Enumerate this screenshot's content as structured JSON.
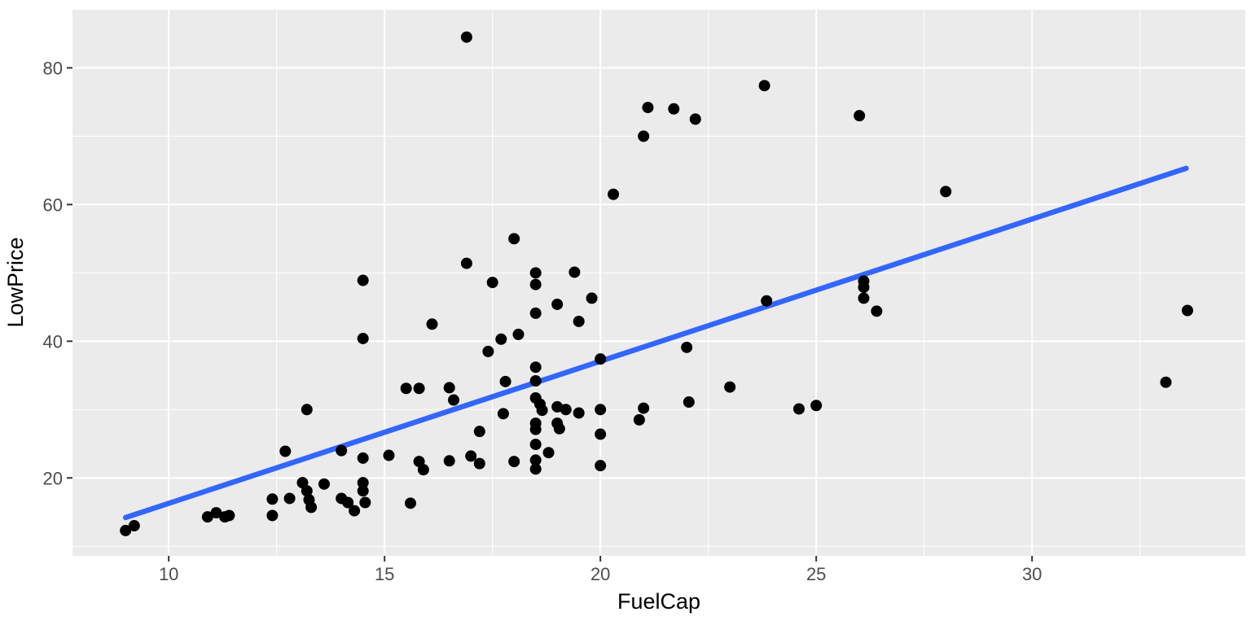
{
  "figure": {
    "kind": "ggplot-scatterplot-with-regression-line"
  },
  "chart_data": {
    "type": "scatter",
    "title": "",
    "xlabel": "FuelCap",
    "ylabel": "LowPrice",
    "xlim": [
      7.77,
      34.94
    ],
    "ylim": [
      8.6,
      88.5
    ],
    "x_major_ticks": [
      10,
      15,
      20,
      25,
      30
    ],
    "y_major_ticks": [
      20,
      40,
      60,
      80
    ],
    "x_minor_ticks": [
      12.5,
      17.5,
      22.5,
      27.5,
      32.5
    ],
    "y_minor_ticks": [
      10,
      30,
      50,
      70
    ],
    "x_tick_labels": [
      "10",
      "15",
      "20",
      "25",
      "30"
    ],
    "y_tick_labels": [
      "20",
      "40",
      "60",
      "80"
    ],
    "grid": true,
    "legend": false,
    "panel_bg": "#EBEBEB",
    "grid_color": "#FFFFFF",
    "tick_color": "#333333",
    "axis_text_color": "#4D4D4D",
    "point_color": "#000000",
    "point_radius": 7,
    "smooth_line": {
      "color": "#3366FF",
      "width": 6.5,
      "x1": 9.0,
      "y1": 14.2,
      "x2": 33.57,
      "y2": 65.3
    },
    "points": [
      [
        9.0,
        12.3
      ],
      [
        9.2,
        13.0
      ],
      [
        10.9,
        14.3
      ],
      [
        11.1,
        14.9
      ],
      [
        11.3,
        14.3
      ],
      [
        11.4,
        14.5
      ],
      [
        12.4,
        16.9
      ],
      [
        12.4,
        14.5
      ],
      [
        12.7,
        23.9
      ],
      [
        12.8,
        17.0
      ],
      [
        13.1,
        19.3
      ],
      [
        13.2,
        18.1
      ],
      [
        13.25,
        16.8
      ],
      [
        13.3,
        15.7
      ],
      [
        13.2,
        30.0
      ],
      [
        13.6,
        19.1
      ],
      [
        14.0,
        24.0
      ],
      [
        14.0,
        17.0
      ],
      [
        14.15,
        16.4
      ],
      [
        14.3,
        15.2
      ],
      [
        14.5,
        48.9
      ],
      [
        14.5,
        40.4
      ],
      [
        14.5,
        22.9
      ],
      [
        14.5,
        19.3
      ],
      [
        14.5,
        18.1
      ],
      [
        14.55,
        16.4
      ],
      [
        15.1,
        23.3
      ],
      [
        15.5,
        33.1
      ],
      [
        15.8,
        33.1
      ],
      [
        15.6,
        16.3
      ],
      [
        15.8,
        22.4
      ],
      [
        15.9,
        21.2
      ],
      [
        16.1,
        42.5
      ],
      [
        16.5,
        33.2
      ],
      [
        16.5,
        22.5
      ],
      [
        16.6,
        31.4
      ],
      [
        16.9,
        84.5
      ],
      [
        16.9,
        51.4
      ],
      [
        17.0,
        23.2
      ],
      [
        17.2,
        26.8
      ],
      [
        17.2,
        22.1
      ],
      [
        17.4,
        38.5
      ],
      [
        17.5,
        48.6
      ],
      [
        17.7,
        40.3
      ],
      [
        17.75,
        29.4
      ],
      [
        17.8,
        34.1
      ],
      [
        18.0,
        55.0
      ],
      [
        18.0,
        22.4
      ],
      [
        18.1,
        41.0
      ],
      [
        18.5,
        50.0
      ],
      [
        18.5,
        48.3
      ],
      [
        18.5,
        44.1
      ],
      [
        18.5,
        36.2
      ],
      [
        18.5,
        34.2
      ],
      [
        18.5,
        31.7
      ],
      [
        18.6,
        30.8
      ],
      [
        18.65,
        29.9
      ],
      [
        18.5,
        28.0
      ],
      [
        18.5,
        27.1
      ],
      [
        18.5,
        24.9
      ],
      [
        18.5,
        22.6
      ],
      [
        18.5,
        21.3
      ],
      [
        18.8,
        23.7
      ],
      [
        19.0,
        45.4
      ],
      [
        19.0,
        30.4
      ],
      [
        19.2,
        30.0
      ],
      [
        19.0,
        28.0
      ],
      [
        19.05,
        27.2
      ],
      [
        19.4,
        50.1
      ],
      [
        19.5,
        42.9
      ],
      [
        19.5,
        29.5
      ],
      [
        19.8,
        46.3
      ],
      [
        20.0,
        37.4
      ],
      [
        20.0,
        30.0
      ],
      [
        20.0,
        26.4
      ],
      [
        20.0,
        21.8
      ],
      [
        20.3,
        61.5
      ],
      [
        20.9,
        28.5
      ],
      [
        21.0,
        30.2
      ],
      [
        21.0,
        70.0
      ],
      [
        21.1,
        74.2
      ],
      [
        21.7,
        74.0
      ],
      [
        22.0,
        39.1
      ],
      [
        22.05,
        31.1
      ],
      [
        22.2,
        72.5
      ],
      [
        23.0,
        33.3
      ],
      [
        23.8,
        77.4
      ],
      [
        23.85,
        45.9
      ],
      [
        24.6,
        30.1
      ],
      [
        25.0,
        30.6
      ],
      [
        26.1,
        48.8
      ],
      [
        26.1,
        47.9
      ],
      [
        26.1,
        46.3
      ],
      [
        26.4,
        44.4
      ],
      [
        26.0,
        73.0
      ],
      [
        28.0,
        61.9
      ],
      [
        33.1,
        34.0
      ],
      [
        33.6,
        44.5
      ]
    ]
  }
}
